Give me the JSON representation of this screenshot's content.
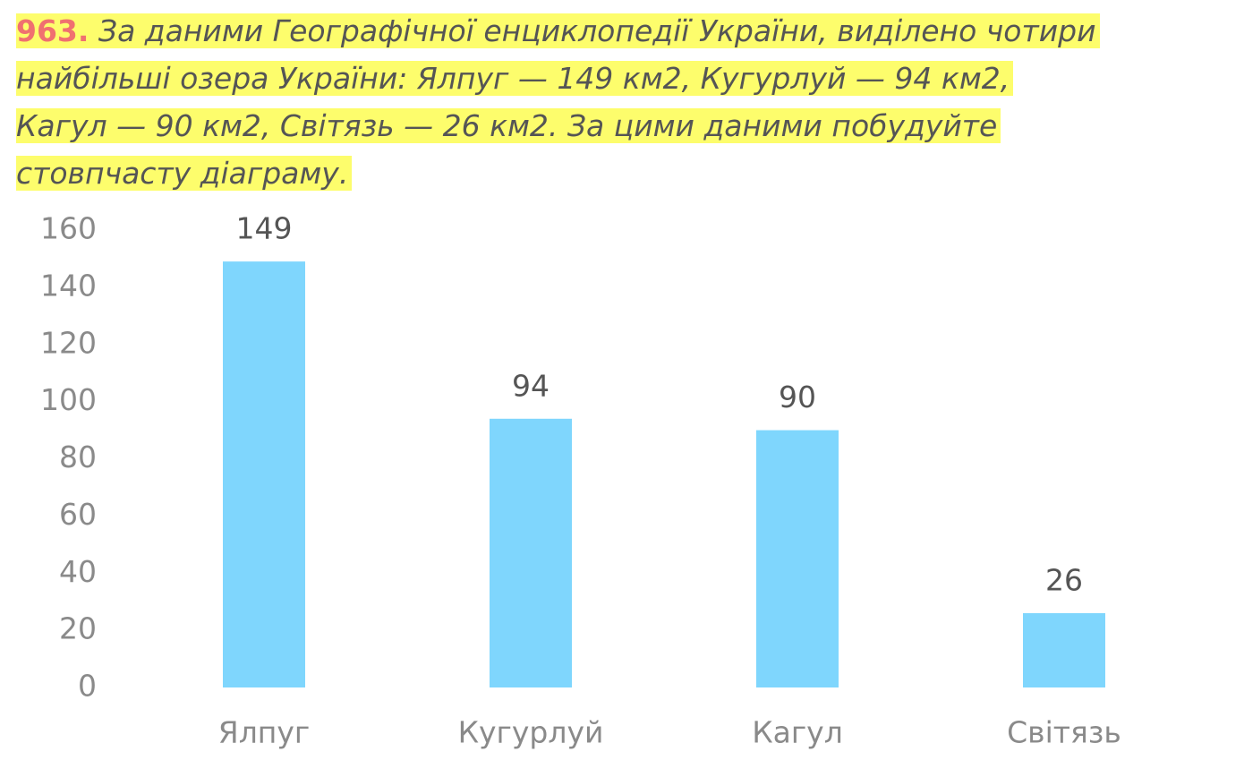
{
  "problem": {
    "number": "963.",
    "lines": [
      "За даними Географічної енциклопедії України, виділено чотири",
      "найбільші озера України: Ялпуг — 149 км2, Кугурлуй — 94 км2,",
      "Кагул — 90 км2, Світязь — 26 км2. За цими даними побудуйте",
      "стовпчасту діаграму."
    ]
  },
  "chart_data": {
    "type": "bar",
    "categories": [
      "Ялпуг",
      "Кугурлуй",
      "Кагул",
      "Світязь"
    ],
    "values": [
      149,
      94,
      90,
      26
    ],
    "color": "#7fd6fd",
    "ylim": [
      0,
      160
    ],
    "yticks": [
      0,
      20,
      40,
      60,
      80,
      100,
      120,
      140,
      160
    ],
    "grid": false
  }
}
